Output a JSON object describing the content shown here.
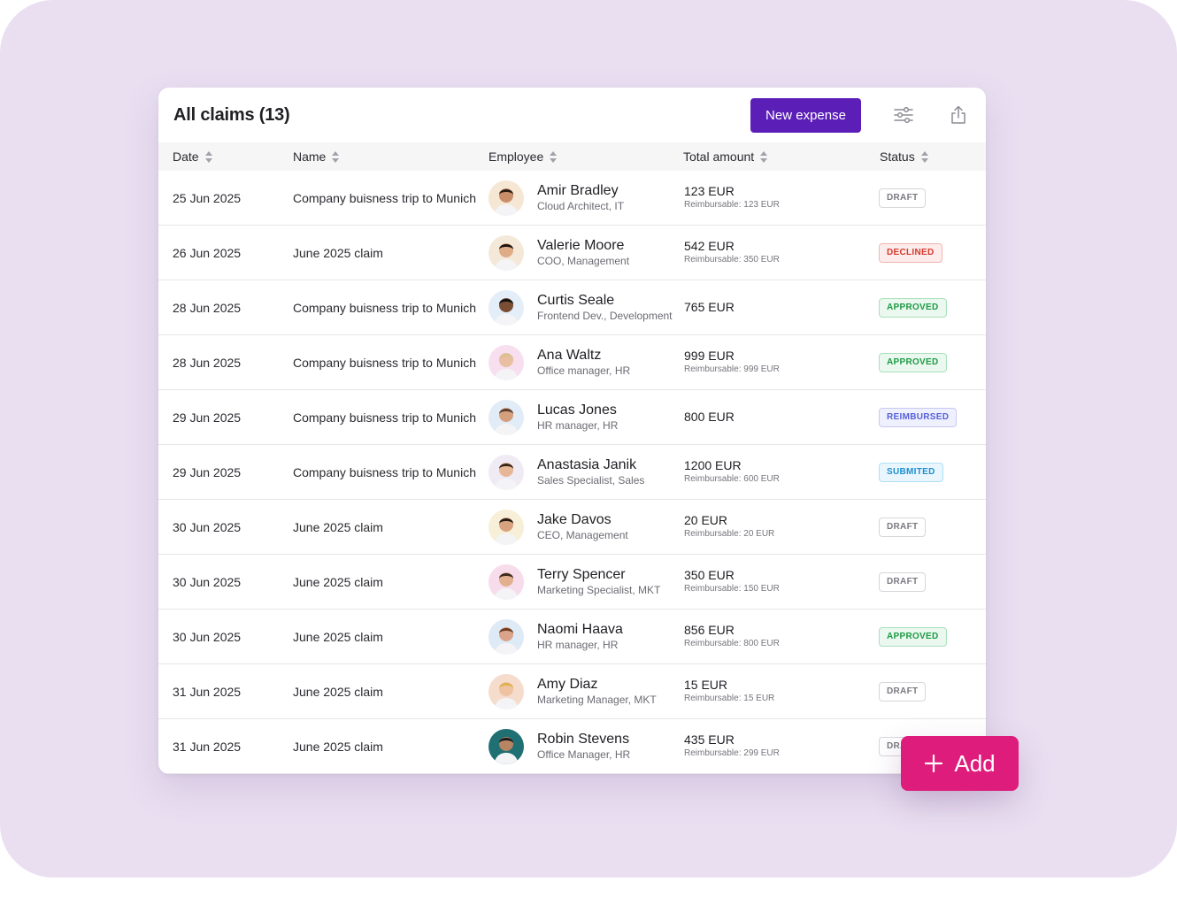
{
  "header": {
    "title": "All claims (13)",
    "new_expense_label": "New expense",
    "filter_icon": "sliders-icon",
    "share_icon": "share-upload-icon"
  },
  "columns": {
    "date": "Date",
    "name": "Name",
    "employee": "Employee",
    "total": "Total amount",
    "status": "Status"
  },
  "rows": [
    {
      "date": "25 Jun 2025",
      "name": "Company buisness trip to Munich",
      "employee": "Amir Bradley",
      "role": "Cloud Architect, IT",
      "amount": "123 EUR",
      "reimbursable": "Reimbursable: 123 EUR",
      "status": "DRAFT",
      "status_type": "draft",
      "avatar_bg": "#f6e7d5"
    },
    {
      "date": "26 Jun 2025",
      "name": "June 2025 claim",
      "employee": "Valerie Moore",
      "role": "COO, Management",
      "amount": "542 EUR",
      "reimbursable": "Reimbursable: 350 EUR",
      "status": "DECLINED",
      "status_type": "declined",
      "avatar_bg": "#f4e8d8"
    },
    {
      "date": "28 Jun 2025",
      "name": "Company buisness trip to Munich",
      "employee": "Curtis Seale",
      "role": "Frontend Dev., Development",
      "amount": "765 EUR",
      "reimbursable": "",
      "status": "APPROVED",
      "status_type": "approved",
      "avatar_bg": "#e3eef8"
    },
    {
      "date": "28 Jun 2025",
      "name": "Company buisness trip to Munich",
      "employee": "Ana Waltz",
      "role": "Office manager, HR",
      "amount": "999 EUR",
      "reimbursable": "Reimbursable: 999 EUR",
      "status": "APPROVED",
      "status_type": "approved",
      "avatar_bg": "#f7dff0"
    },
    {
      "date": "29 Jun 2025",
      "name": "Company buisness trip to Munich",
      "employee": "Lucas Jones",
      "role": "HR manager, HR",
      "amount": "800 EUR",
      "reimbursable": "",
      "status": "REIMBURSED",
      "status_type": "reimbursed",
      "avatar_bg": "#e2ecf7"
    },
    {
      "date": "29 Jun 2025",
      "name": "Company buisness trip to Munich",
      "employee": "Anastasia Janik",
      "role": "Sales Specialist, Sales",
      "amount": "1200 EUR",
      "reimbursable": "Reimbursable: 600 EUR",
      "status": "SUBMITED",
      "status_type": "submited",
      "avatar_bg": "#f0eaf4"
    },
    {
      "date": "30 Jun 2025",
      "name": "June 2025 claim",
      "employee": "Jake Davos",
      "role": "CEO, Management",
      "amount": "20 EUR",
      "reimbursable": "Reimbursable: 20 EUR",
      "status": "DRAFT",
      "status_type": "draft",
      "avatar_bg": "#f8efd8"
    },
    {
      "date": "30 Jun 2025",
      "name": "June 2025 claim",
      "employee": "Terry Spencer",
      "role": "Marketing Specialist, MKT",
      "amount": "350 EUR",
      "reimbursable": "Reimbursable: 150 EUR",
      "status": "DRAFT",
      "status_type": "draft",
      "avatar_bg": "#f7dceb"
    },
    {
      "date": "30 Jun 2025",
      "name": "June 2025 claim",
      "employee": "Naomi Haava",
      "role": "HR manager, HR",
      "amount": "856 EUR",
      "reimbursable": "Reimbursable: 800 EUR",
      "status": "APPROVED",
      "status_type": "approved",
      "avatar_bg": "#dfeaf7"
    },
    {
      "date": "31 Jun 2025",
      "name": "June 2025 claim",
      "employee": "Amy Diaz",
      "role": "Marketing Manager, MKT",
      "amount": "15 EUR",
      "reimbursable": "Reimbursable: 15 EUR",
      "status": "DRAFT",
      "status_type": "draft",
      "avatar_bg": "#f5dccd"
    },
    {
      "date": "31 Jun 2025",
      "name": "June 2025 claim",
      "employee": "Robin Stevens",
      "role": "Office Manager, HR",
      "amount": "435 EUR",
      "reimbursable": "Reimbursable: 299 EUR",
      "status": "DRAFT",
      "status_type": "draft",
      "avatar_bg": "#1f6f73"
    }
  ],
  "fab": {
    "label": "Add",
    "icon": "plus-icon"
  },
  "colors": {
    "primary": "#5b1fb8",
    "accent": "#de1c7b",
    "backdrop": "#e9dff1"
  }
}
